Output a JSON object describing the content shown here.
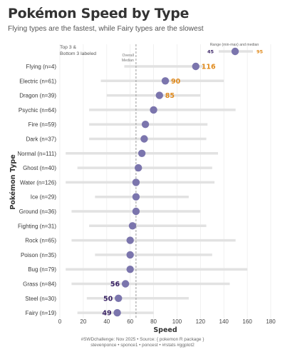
{
  "title": "Pokémon Speed by Type",
  "subtitle": "Flying types are the fastest, while Fairy types are the slowest",
  "caption": {
    "line1": "#SWDchallenge: Nov 2025 • Source: { pokemon R package }",
    "line2": "stevenponce • sponce1 • poncest • #rstats #ggplot2"
  },
  "annotations": {
    "top_bottom_note": [
      "Top 3 &",
      "Bottom 3 labeled"
    ],
    "overall_median": [
      "Overall",
      "Median"
    ],
    "legend_title": "Range (min-max) and median",
    "legend_min": "45",
    "legend_max": "95"
  },
  "colors": {
    "point": "#7b75ad",
    "range_bar": "#e2e2e2",
    "top_label": "#e08a1c",
    "bottom_label": "#3b2466",
    "median_line": "#9a9a9a"
  },
  "chart_data": {
    "type": "dot-range",
    "title": "Pokémon Speed by Type",
    "xlabel": "Speed",
    "ylabel": "Pokémon Type",
    "xlim": [
      0,
      180
    ],
    "xticks": [
      0,
      20,
      40,
      60,
      80,
      100,
      120,
      140,
      160,
      180
    ],
    "grid": true,
    "overall_median": 65,
    "categories": [
      "Flying (n=4)",
      "Electric (n=61)",
      "Dragon (n=39)",
      "Psychic (n=64)",
      "Fire (n=59)",
      "Dark (n=37)",
      "Normal (n=111)",
      "Ghost (n=40)",
      "Water (n=126)",
      "Ice (n=29)",
      "Ground (n=36)",
      "Fighting (n=31)",
      "Rock (n=65)",
      "Poison (n=35)",
      "Bug (n=79)",
      "Grass (n=84)",
      "Steel (n=30)",
      "Fairy (n=19)"
    ],
    "median": [
      116,
      90,
      85,
      80,
      73,
      72,
      70,
      67,
      65,
      65,
      65,
      62,
      60,
      60,
      60,
      56,
      50,
      49
    ],
    "min": [
      55,
      35,
      40,
      25,
      25,
      25,
      5,
      15,
      5,
      30,
      10,
      25,
      10,
      30,
      5,
      10,
      23,
      15
    ],
    "max": [
      123,
      140,
      120,
      150,
      126,
      125,
      135,
      130,
      132,
      110,
      120,
      125,
      150,
      130,
      160,
      145,
      110,
      80
    ],
    "labels": [
      "116",
      "90",
      "85",
      "",
      "",
      "",
      "",
      "",
      "",
      "",
      "",
      "",
      "",
      "",
      "",
      "56",
      "50",
      "49"
    ],
    "label_group": [
      "top",
      "top",
      "top",
      "",
      "",
      "",
      "",
      "",
      "",
      "",
      "",
      "",
      "",
      "",
      "",
      "bottom",
      "bottom",
      "bottom"
    ]
  }
}
